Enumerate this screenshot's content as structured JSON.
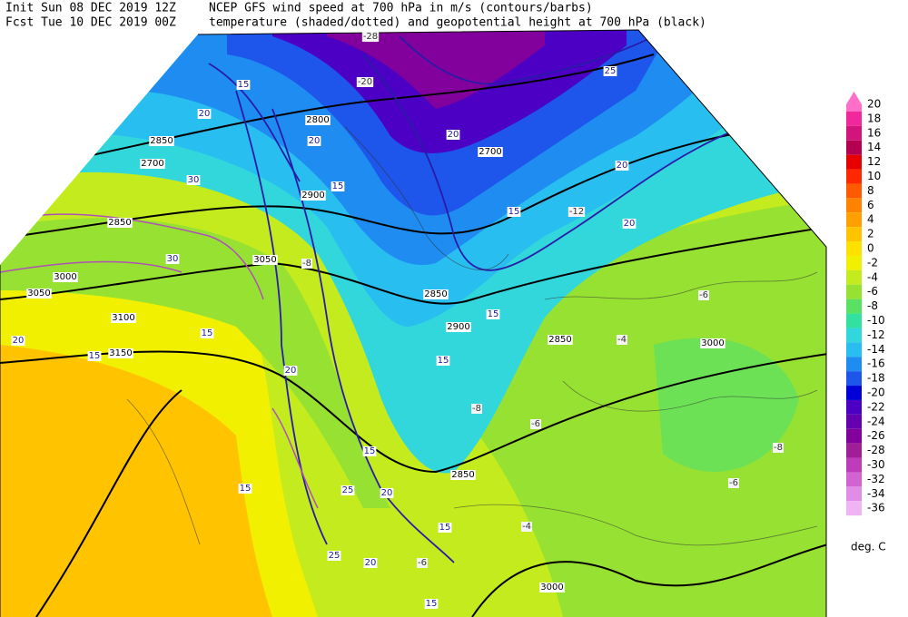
{
  "header": {
    "init": "Init  Sun 08 DEC 2019 12Z",
    "fcst": "Fcst Tue 10 DEC 2019 00Z",
    "title_line1": "NCEP GFS wind speed at 700 hPa in m/s (contours/barbs)",
    "title_line2": "temperature (shaded/dotted) and geopotential height at 700 hPa (black)"
  },
  "colorbar": {
    "levels": [
      20,
      18,
      16,
      14,
      12,
      10,
      8,
      6,
      4,
      2,
      0,
      -2,
      -4,
      -6,
      -8,
      -10,
      -12,
      -14,
      -16,
      -18,
      -20,
      -22,
      -24,
      -26,
      -28,
      -30,
      -32,
      -34,
      -36
    ],
    "colors": [
      "#ff6ec7",
      "#f0289b",
      "#d2147d",
      "#b40050",
      "#e60000",
      "#ff2800",
      "#ff5a00",
      "#ff8200",
      "#ffa000",
      "#ffc300",
      "#ffe100",
      "#f0f000",
      "#c3eb1e",
      "#96e132",
      "#5ae164",
      "#32e1a0",
      "#32d7dc",
      "#28bef0",
      "#1e8cf0",
      "#1e55eb",
      "#0000d7",
      "#4b00c3",
      "#6400af",
      "#82009b",
      "#a01e96",
      "#be3cb9",
      "#d264d2",
      "#e18ce6",
      "#f0b4f5"
    ],
    "unit": "deg. C"
  },
  "map": {
    "height_labels": [
      "2800",
      "2850",
      "2700",
      "2900",
      "2850",
      "2700",
      "3000",
      "3050",
      "3100",
      "3150",
      "3050",
      "2850",
      "2900",
      "2850",
      "3000",
      "2850",
      "3000"
    ],
    "wind_labels": [
      "15",
      "25",
      "20",
      "20",
      "20",
      "15",
      "20",
      "15",
      "15",
      "20",
      "15",
      "25",
      "20",
      "15",
      "15",
      "20",
      "25",
      "15",
      "20",
      "15",
      "15",
      "15",
      "20",
      "30",
      "30"
    ],
    "temperature_labels": [
      "-28",
      "-20",
      "-12",
      "-8",
      "-6",
      "-4",
      "-6",
      "-8",
      "-8",
      "-6",
      "-4",
      "-6"
    ]
  }
}
